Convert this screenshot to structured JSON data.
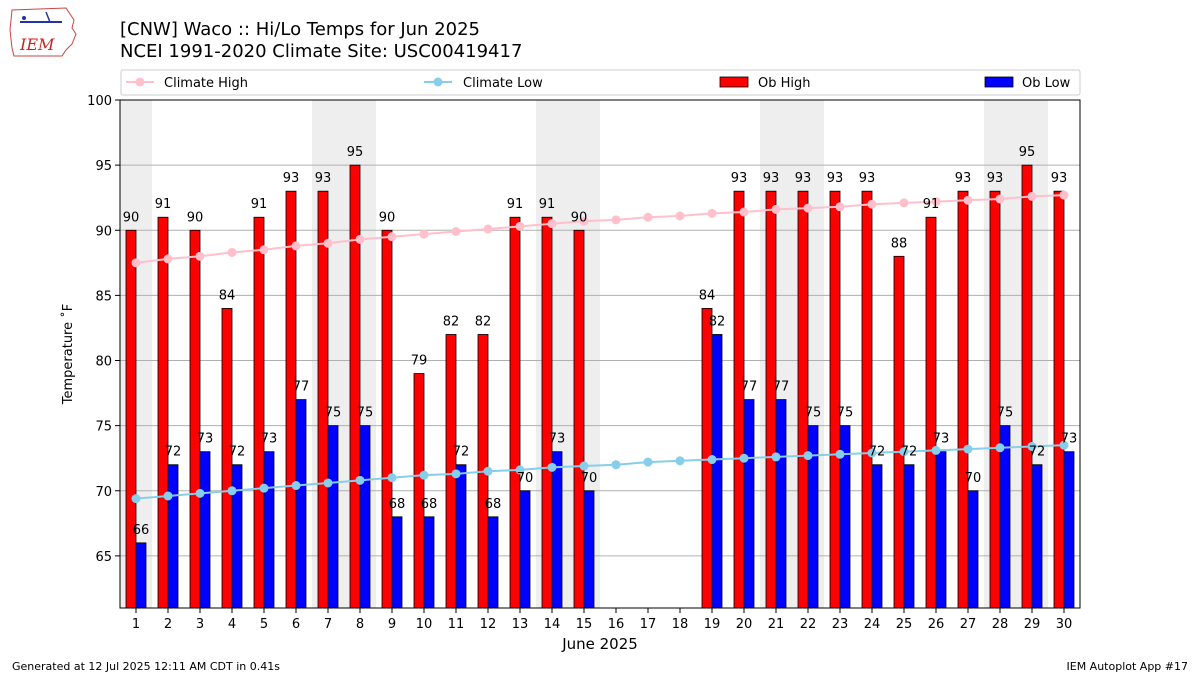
{
  "header": {
    "title_line1": "[CNW] Waco :: Hi/Lo Temps for Jun 2025",
    "title_line2": "NCEI 1991-2020 Climate Site: USC00419417",
    "logo_text": "IEM"
  },
  "footer": {
    "left": "Generated at 12 Jul 2025 12:11 AM CDT in 0.41s",
    "right": "IEM Autoplot App #17"
  },
  "colors": {
    "ob_high": "#ff0000",
    "ob_low": "#0000ff",
    "climate_high": "#ffc0cb",
    "climate_low": "#87ceeb",
    "weekend_shade": "#eeeeee",
    "grid": "#b0b0b0"
  },
  "chart_data": {
    "type": "bar",
    "xlabel": "June 2025",
    "ylabel": "Temperature ˚F",
    "ylim": [
      61,
      100
    ],
    "yticks": [
      65,
      70,
      75,
      80,
      85,
      90,
      95,
      100
    ],
    "grid": "horizontal",
    "legend_placement": "top",
    "categories": [
      "1",
      "2",
      "3",
      "4",
      "5",
      "6",
      "7",
      "8",
      "9",
      "10",
      "11",
      "12",
      "13",
      "14",
      "15",
      "16",
      "17",
      "18",
      "19",
      "20",
      "21",
      "22",
      "23",
      "24",
      "25",
      "26",
      "27",
      "28",
      "29",
      "30"
    ],
    "shaded_days": [
      1,
      7,
      8,
      14,
      15,
      21,
      22,
      28,
      29
    ],
    "series": [
      {
        "name": "Climate High",
        "kind": "line",
        "values": [
          87.5,
          87.8,
          88.0,
          88.3,
          88.5,
          88.8,
          89.0,
          89.3,
          89.5,
          89.7,
          89.9,
          90.1,
          90.3,
          90.5,
          90.7,
          90.8,
          91.0,
          91.1,
          91.3,
          91.4,
          91.6,
          91.7,
          91.8,
          92.0,
          92.1,
          92.2,
          92.3,
          92.4,
          92.6,
          92.7
        ]
      },
      {
        "name": "Climate Low",
        "kind": "line",
        "values": [
          69.4,
          69.6,
          69.8,
          70.0,
          70.2,
          70.4,
          70.6,
          70.8,
          71.0,
          71.2,
          71.3,
          71.5,
          71.6,
          71.8,
          71.9,
          72.0,
          72.2,
          72.3,
          72.4,
          72.5,
          72.6,
          72.7,
          72.8,
          72.9,
          73.0,
          73.1,
          73.2,
          73.3,
          73.4,
          73.5
        ]
      },
      {
        "name": "Ob High",
        "kind": "bar",
        "values": [
          90,
          91,
          90,
          84,
          91,
          93,
          93,
          95,
          90,
          79,
          82,
          82,
          91,
          91,
          90,
          null,
          null,
          null,
          84,
          93,
          93,
          93,
          93,
          93,
          88,
          91,
          93,
          93,
          95,
          93
        ]
      },
      {
        "name": "Ob Low",
        "kind": "bar",
        "values": [
          66,
          72,
          73,
          72,
          73,
          77,
          75,
          75,
          68,
          68,
          72,
          68,
          70,
          73,
          70,
          null,
          null,
          null,
          82,
          77,
          77,
          75,
          75,
          72,
          72,
          73,
          70,
          75,
          72,
          73
        ]
      }
    ]
  }
}
